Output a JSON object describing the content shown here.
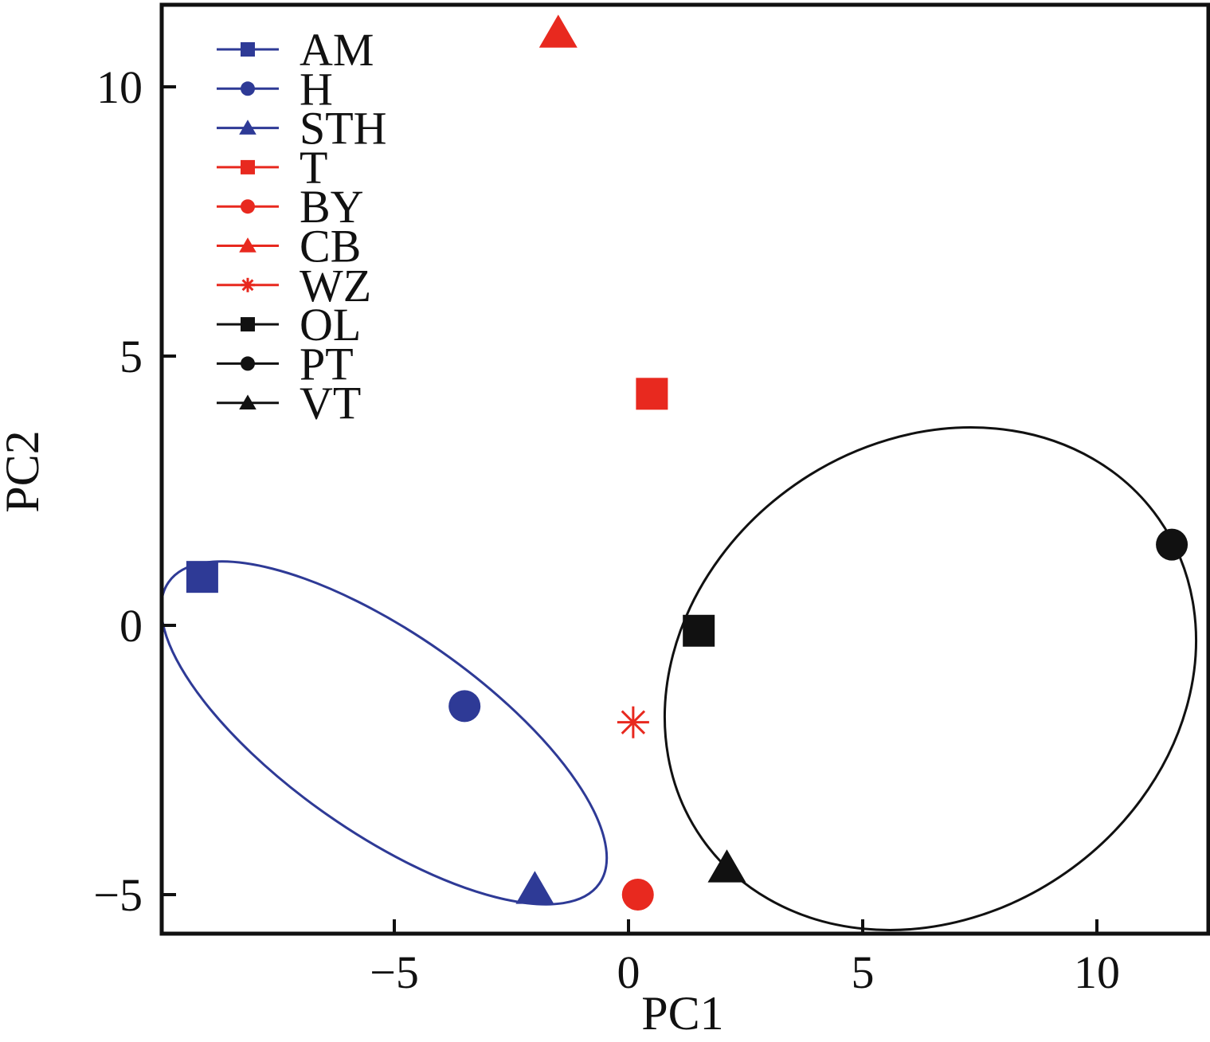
{
  "chart_data": {
    "type": "scatter",
    "title": "",
    "xlabel": "PC1",
    "ylabel": "PC2",
    "xlim": [
      -10,
      12.3
    ],
    "ylim": [
      -5.7,
      11.5
    ],
    "xticks": [
      -5,
      0,
      5,
      10
    ],
    "xtick_labels": [
      "−5",
      "0",
      "5",
      "10"
    ],
    "yticks": [
      -5,
      0,
      5,
      10
    ],
    "ytick_labels": [
      "−5",
      "0",
      "5",
      "10"
    ],
    "grid": false,
    "legend_position": "top-left",
    "series": [
      {
        "name": "AM",
        "marker": "square",
        "color": "#2e3a96",
        "x": -9.1,
        "y": 0.9
      },
      {
        "name": "H",
        "marker": "circle",
        "color": "#2e3a96",
        "x": -3.5,
        "y": -1.5
      },
      {
        "name": "STH",
        "marker": "triangle",
        "color": "#2e3a96",
        "x": -2.0,
        "y": -4.9
      },
      {
        "name": "T",
        "marker": "square",
        "color": "#e8291f",
        "x": 0.5,
        "y": 4.3
      },
      {
        "name": "BY",
        "marker": "circle",
        "color": "#e8291f",
        "x": 0.2,
        "y": -5.0
      },
      {
        "name": "CB",
        "marker": "triangle",
        "color": "#e8291f",
        "x": -1.5,
        "y": 11.0
      },
      {
        "name": "WZ",
        "marker": "asterisk",
        "color": "#e8291f",
        "x": 0.1,
        "y": -1.8
      },
      {
        "name": "OL",
        "marker": "square",
        "color": "#111111",
        "x": 1.5,
        "y": -0.1
      },
      {
        "name": "PT",
        "marker": "circle",
        "color": "#111111",
        "x": 11.6,
        "y": 1.5
      },
      {
        "name": "VT",
        "marker": "triangle",
        "color": "#111111",
        "x": 2.1,
        "y": -4.5
      }
    ],
    "groups": [
      {
        "color": "#2e3a96",
        "members": [
          "AM",
          "H",
          "STH"
        ],
        "shape": "ellipse"
      },
      {
        "color": "#111111",
        "members": [
          "OL",
          "PT",
          "VT"
        ],
        "shape": "ellipse"
      }
    ]
  }
}
